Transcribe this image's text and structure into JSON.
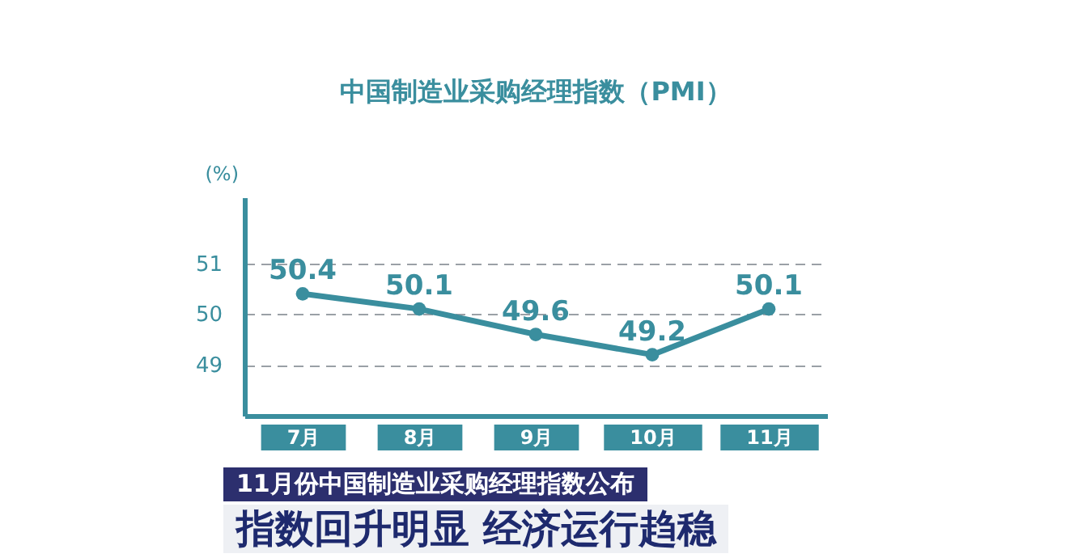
{
  "chart_data": {
    "type": "line",
    "title": "中国制造业采购经理指数（PMI）",
    "ylabel": "(%)",
    "categories": [
      "7月",
      "8月",
      "9月",
      "10月",
      "11月"
    ],
    "series": [
      {
        "color": "#3a8e9e",
        "values": [
          50.4,
          50.1,
          49.6,
          49.2,
          50.1
        ]
      }
    ],
    "ylim": [
      48,
      52.3
    ],
    "yticks": [
      49,
      50,
      51
    ],
    "grid": "y",
    "data_labels": true,
    "marker": "circle",
    "line_style": "solid",
    "annotations": [
      "11月份中国制造业采购经理指数公布",
      "指数回升明显 经济运行趋稳"
    ]
  }
}
